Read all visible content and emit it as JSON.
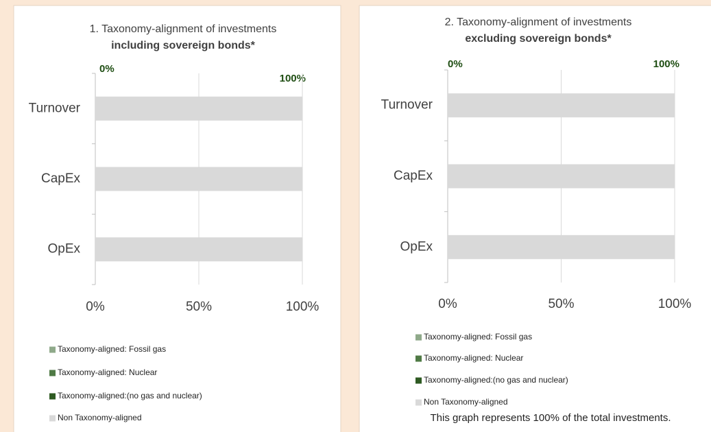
{
  "chart_data": [
    {
      "type": "stacked_bar_horizontal",
      "title": "1. Taxonomy-alignment of investments",
      "subtitle": "including sovereign bonds*",
      "annotations": [
        "0%",
        "100%"
      ],
      "categories": [
        "Turnover",
        "CapEx",
        "OpEx"
      ],
      "series": [
        {
          "name": "Taxonomy-aligned: Fossil gas",
          "color": "#8fa98a",
          "values": [
            0,
            0,
            0
          ]
        },
        {
          "name": "Taxonomy-aligned: Nuclear",
          "color": "#4f7a45",
          "values": [
            0,
            0,
            0
          ]
        },
        {
          "name": "Taxonomy-aligned:(no gas and nuclear)",
          "color": "#2e5a22",
          "values": [
            0,
            0,
            0
          ]
        },
        {
          "name": "Non Taxonomy-aligned",
          "color": "#d9d9d9",
          "values": [
            100,
            100,
            100
          ]
        }
      ],
      "xlim": [
        0,
        100
      ],
      "xticks": [
        {
          "value": 0,
          "label": "0%"
        },
        {
          "value": 50,
          "label": "50%"
        },
        {
          "value": 100,
          "label": "100%"
        }
      ],
      "grid": true
    },
    {
      "type": "stacked_bar_horizontal",
      "title": "2. Taxonomy-alignment of investments",
      "subtitle": "excluding sovereign bonds*",
      "annotations": [
        "0%",
        "100%"
      ],
      "categories": [
        "Turnover",
        "CapEx",
        "OpEx"
      ],
      "series": [
        {
          "name": "Taxonomy-aligned: Fossil gas",
          "color": "#8fa98a",
          "values": [
            0,
            0,
            0
          ]
        },
        {
          "name": "Taxonomy-aligned: Nuclear",
          "color": "#4f7a45",
          "values": [
            0,
            0,
            0
          ]
        },
        {
          "name": "Taxonomy-aligned:(no gas and nuclear)",
          "color": "#2e5a22",
          "values": [
            0,
            0,
            0
          ]
        },
        {
          "name": "Non Taxonomy-aligned",
          "color": "#d9d9d9",
          "values": [
            100,
            100,
            100
          ]
        }
      ],
      "xlim": [
        0,
        100
      ],
      "xticks": [
        {
          "value": 0,
          "label": "0%"
        },
        {
          "value": 50,
          "label": "50%"
        },
        {
          "value": 100,
          "label": "100%"
        }
      ],
      "grid": true,
      "footnote": "This graph represents 100% of the total investments."
    }
  ]
}
